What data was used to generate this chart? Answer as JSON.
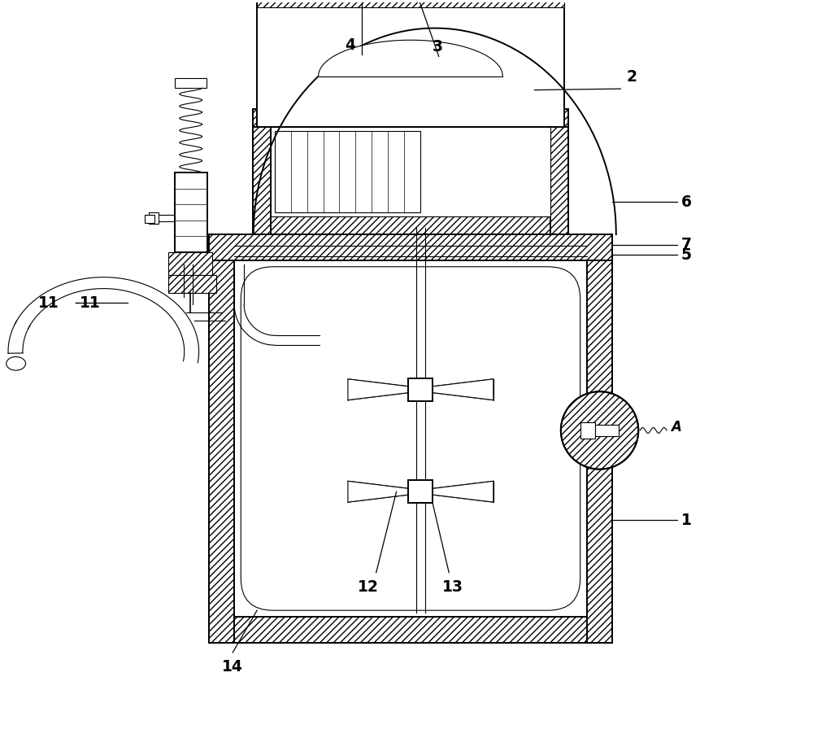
{
  "bg_color": "#ffffff",
  "line_color": "#000000",
  "lw": 1.4,
  "lw_thin": 0.8,
  "lw_hatch": 0.6,
  "ann_lw": 0.9,
  "figsize": [
    10.0,
    9.07
  ],
  "dpi": 100,
  "xlim": [
    0,
    10
  ],
  "ylim": [
    0,
    9.07
  ]
}
